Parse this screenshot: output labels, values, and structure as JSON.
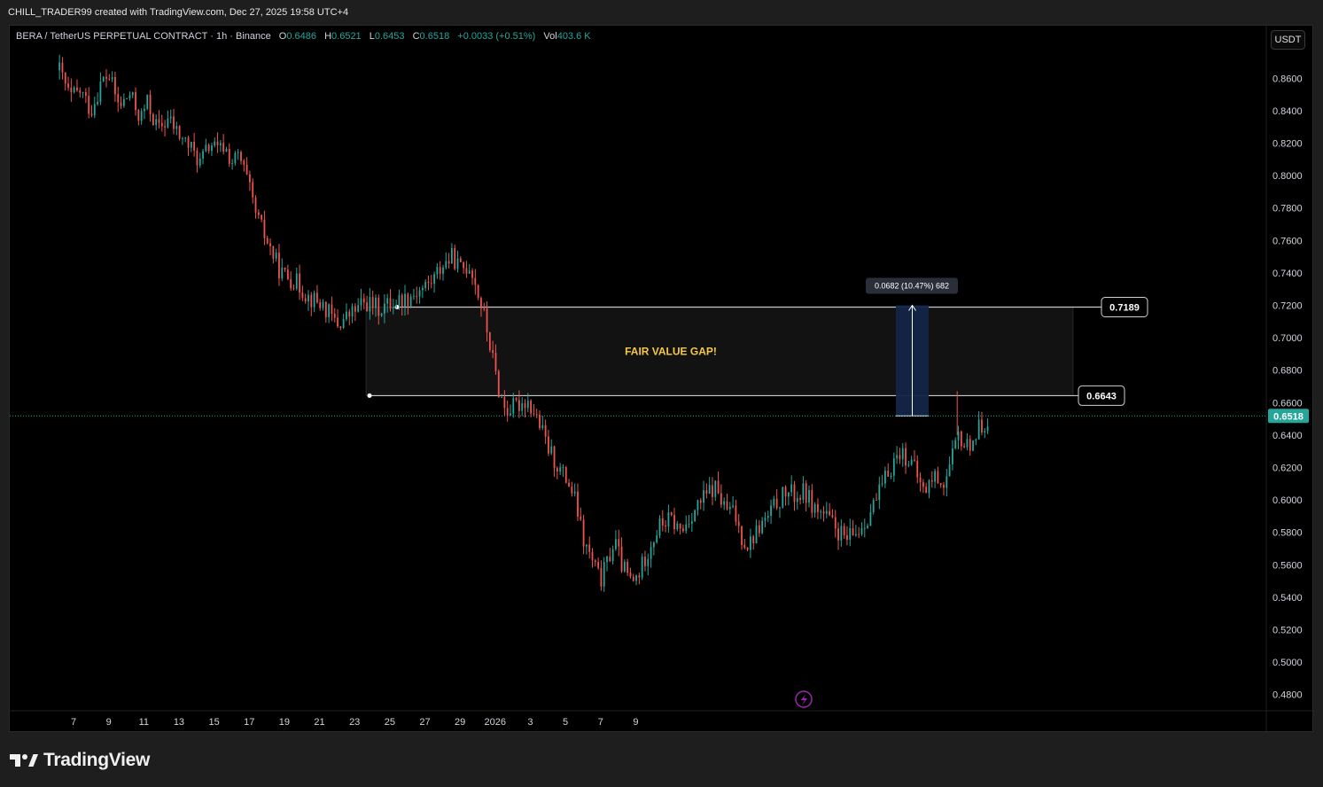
{
  "attribution": "CHILL_TRADER99 created with TradingView.com, Dec 27, 2025 19:58 UTC+4",
  "legend": {
    "symbol": "BERA / TetherUS PERPETUAL CONTRACT · 1h · Binance",
    "open_key": "O",
    "open": "0.6486",
    "high_key": "H",
    "high": "0.6521",
    "low_key": "L",
    "low": "0.6453",
    "close_key": "C",
    "close": "0.6518",
    "change": "+0.0033 (+0.51%)",
    "vol_key": "Vol",
    "vol": "403.6 K"
  },
  "currency_button": "USDT",
  "footer": {
    "logo_text": "TradingView",
    "logo_icon": "tradingview-logo-icon"
  },
  "colors": {
    "background": "#000000",
    "up": "#26a69a",
    "down": "#ef5350",
    "axis_text": "#d1d4dc",
    "zone_label": "#f7c948",
    "price_badge": "#26a69a",
    "measure_fill": "#132548",
    "accent_icon": "#9c27b0"
  },
  "chart_data": {
    "type": "candlestick",
    "symbol": "BERA/USDT",
    "interval": "1h",
    "ylim": [
      0.47,
      0.876
    ],
    "y_ticks": [
      "0.8600",
      "0.8400",
      "0.8200",
      "0.8000",
      "0.7800",
      "0.7600",
      "0.7400",
      "0.7200",
      "0.7000",
      "0.6800",
      "0.6600",
      "0.6400",
      "0.6200",
      "0.6000",
      "0.5800",
      "0.5600",
      "0.5400",
      "0.5200",
      "0.5000",
      "0.4800"
    ],
    "x_ticks": [
      "7",
      "9",
      "11",
      "13",
      "15",
      "17",
      "19",
      "21",
      "23",
      "25",
      "27",
      "29",
      "2026",
      "3",
      "5",
      "7",
      "9"
    ],
    "last_price": 0.6518,
    "last_price_label": "0.6518",
    "zone": {
      "label": "FAIR VALUE GAP!",
      "top": 0.7189,
      "bottom": 0.6643,
      "top_label": "0.7189",
      "bottom_label": "0.6643"
    },
    "measure": {
      "from": 0.6518,
      "to": 0.72,
      "label": "0.0682 (10.47%) 682"
    },
    "price_path": [
      [
        -0.4,
        0.865
      ],
      [
        -0.1,
        0.848
      ],
      [
        0.2,
        0.852
      ],
      [
        0.5,
        0.84
      ],
      [
        0.8,
        0.858
      ],
      [
        1.0,
        0.862
      ],
      [
        1.3,
        0.842
      ],
      [
        1.6,
        0.85
      ],
      [
        1.9,
        0.835
      ],
      [
        2.1,
        0.845
      ],
      [
        2.4,
        0.828
      ],
      [
        2.7,
        0.835
      ],
      [
        3.0,
        0.825
      ],
      [
        3.3,
        0.818
      ],
      [
        3.6,
        0.808
      ],
      [
        3.9,
        0.82
      ],
      [
        4.1,
        0.815
      ],
      [
        4.3,
        0.818
      ],
      [
        4.5,
        0.808
      ],
      [
        4.7,
        0.812
      ],
      [
        4.9,
        0.8
      ],
      [
        5.2,
        0.775
      ],
      [
        5.5,
        0.76
      ],
      [
        5.9,
        0.74
      ],
      [
        6.3,
        0.735
      ],
      [
        6.7,
        0.725
      ],
      [
        7.1,
        0.72
      ],
      [
        7.5,
        0.708
      ],
      [
        7.9,
        0.715
      ],
      [
        8.3,
        0.722
      ],
      [
        8.7,
        0.718
      ],
      [
        9.1,
        0.722
      ],
      [
        9.5,
        0.725
      ],
      [
        9.9,
        0.73
      ],
      [
        10.2,
        0.735
      ],
      [
        10.5,
        0.745
      ],
      [
        10.8,
        0.75
      ],
      [
        11.0,
        0.742
      ],
      [
        11.3,
        0.745
      ],
      [
        11.5,
        0.728
      ],
      [
        11.7,
        0.712
      ],
      [
        11.9,
        0.69
      ],
      [
        12.1,
        0.668
      ],
      [
        12.3,
        0.655
      ],
      [
        12.6,
        0.658
      ],
      [
        12.9,
        0.662
      ],
      [
        13.2,
        0.65
      ],
      [
        13.5,
        0.632
      ],
      [
        13.8,
        0.62
      ],
      [
        14.1,
        0.61
      ],
      [
        14.3,
        0.598
      ],
      [
        14.5,
        0.575
      ],
      [
        14.7,
        0.565
      ],
      [
        15.0,
        0.55
      ],
      [
        15.2,
        0.562
      ],
      [
        15.4,
        0.575
      ],
      [
        15.6,
        0.56
      ],
      [
        15.9,
        0.548
      ],
      [
        16.1,
        0.555
      ],
      [
        16.4,
        0.572
      ],
      [
        16.7,
        0.585
      ],
      [
        17.0,
        0.588
      ],
      [
        17.3,
        0.58
      ],
      [
        17.6,
        0.592
      ],
      [
        17.9,
        0.6
      ],
      [
        18.1,
        0.605
      ],
      [
        18.3,
        0.608
      ],
      [
        18.5,
        0.595
      ],
      [
        18.8,
        0.592
      ],
      [
        19.0,
        0.578
      ],
      [
        19.2,
        0.572
      ],
      [
        19.5,
        0.583
      ],
      [
        19.8,
        0.59
      ],
      [
        20.0,
        0.598
      ],
      [
        20.3,
        0.605
      ],
      [
        20.6,
        0.602
      ],
      [
        20.8,
        0.605
      ],
      [
        21.1,
        0.595
      ],
      [
        21.4,
        0.59
      ],
      [
        21.7,
        0.582
      ],
      [
        22.0,
        0.575
      ],
      [
        22.3,
        0.58
      ],
      [
        22.6,
        0.59
      ],
      [
        22.9,
        0.602
      ],
      [
        23.2,
        0.618
      ],
      [
        23.5,
        0.63
      ],
      [
        23.8,
        0.625
      ],
      [
        24.0,
        0.615
      ],
      [
        24.2,
        0.605
      ],
      [
        24.5,
        0.615
      ],
      [
        24.8,
        0.61
      ],
      [
        25.0,
        0.625
      ],
      [
        25.2,
        0.64
      ],
      [
        25.4,
        0.632
      ],
      [
        25.6,
        0.638
      ],
      [
        25.8,
        0.645
      ],
      [
        26.0,
        0.65
      ]
    ]
  }
}
